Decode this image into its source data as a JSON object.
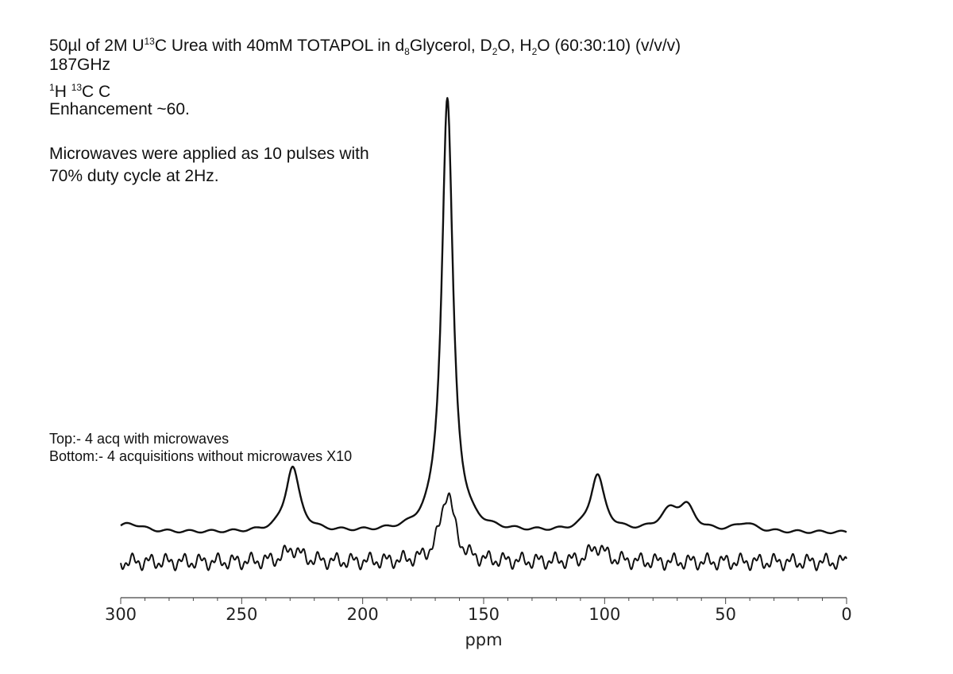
{
  "header": {
    "title": {
      "p1": "50µl of 2M U",
      "sup1": "13",
      "p2": "C Urea with 40mM TOTAPOL in d",
      "sub1": "8",
      "p3": "Glycerol, D",
      "sub2": "2",
      "p4": "O, H",
      "sub3": "2",
      "p5": "O (60:30:10) (v/v/v)"
    },
    "frequency": "187GHz",
    "nuclei": {
      "sup1": "1",
      "p1": "H ",
      "sup2": "13",
      "p2": "C C"
    },
    "enhancement": "Enhancement ~60.",
    "microwave_line1": "Microwaves were applied as 10 pulses with",
    "microwave_line2": "70% duty cycle at 2Hz.",
    "legend_top": "Top:- 4 acq with microwaves",
    "legend_bottom": "Bottom:- 4 acquisitions without microwaves X10"
  },
  "chart_data": {
    "type": "line",
    "xlabel": "ppm",
    "ylabel": "",
    "xlim": [
      300,
      0
    ],
    "x_reversed": true,
    "xticks": [
      300,
      250,
      200,
      150,
      100,
      50,
      0
    ],
    "xtick_labels": [
      "300",
      "250",
      "200",
      "150",
      "100",
      "50",
      "0"
    ],
    "grid": false,
    "colors": {
      "line": "#111111",
      "axis": "#444444"
    },
    "series": [
      {
        "name": "Top:- 4 acq with microwaves",
        "peaks": [
          {
            "center": 296,
            "height": 0.02,
            "width": 6
          },
          {
            "center": 229,
            "height": 0.15,
            "width": 3.5
          },
          {
            "center": 165,
            "height": 1.0,
            "width": 2.8
          },
          {
            "center": 103,
            "height": 0.13,
            "width": 3.5
          },
          {
            "center": 73,
            "height": 0.045,
            "width": 5
          },
          {
            "center": 66,
            "height": 0.05,
            "width": 4
          },
          {
            "center": 42,
            "height": 0.02,
            "width": 5
          }
        ],
        "baseline": 0.0
      },
      {
        "name": "Bottom:- 4 acquisitions without microwaves X10",
        "peaks": [
          {
            "center": 229,
            "height": 0.03,
            "width": 4
          },
          {
            "center": 165,
            "height": 0.16,
            "width": 3.5
          },
          {
            "center": 103,
            "height": 0.035,
            "width": 4
          }
        ],
        "baseline": 0.0
      }
    ]
  }
}
